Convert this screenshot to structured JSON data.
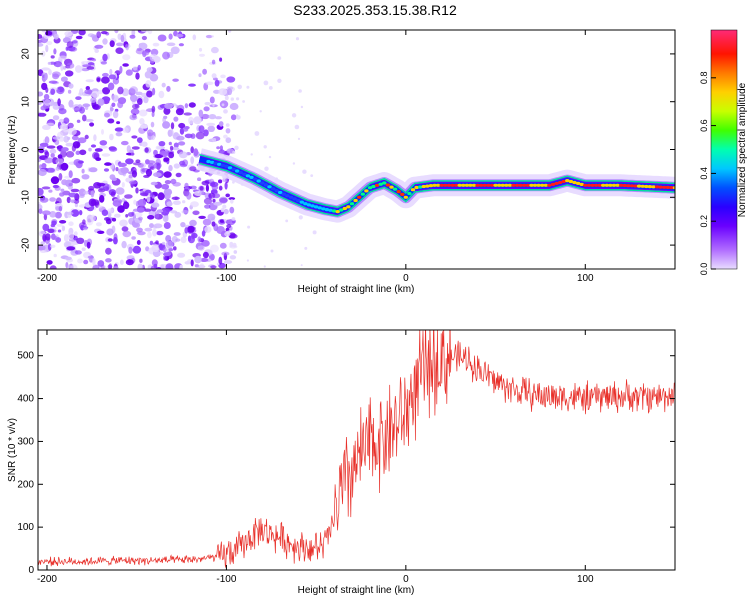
{
  "figure": {
    "title": "S233.2025.353.15.38.R12"
  },
  "chart_data": [
    {
      "type": "heatmap",
      "name": "spectrogram",
      "title": "S233.2025.353.15.38.R12",
      "xlabel": "Height of straight line (km)",
      "ylabel": "Frequency (Hz)",
      "xlim": [
        -205,
        150
      ],
      "ylim": [
        -25,
        25
      ],
      "xticks": [
        -200,
        -100,
        0,
        100
      ],
      "yticks": [
        -20,
        -10,
        0,
        10,
        20
      ],
      "xtick_labels": [
        "-200",
        "-100",
        "0",
        "100"
      ],
      "ytick_labels": [
        "-20",
        "-10",
        "0",
        "10",
        "20"
      ],
      "colorbar": {
        "label": "Normalized spectral amplitude",
        "range": [
          0,
          1
        ],
        "ticks": [
          0,
          0.2,
          0.4,
          0.6,
          0.8
        ],
        "tick_labels": [
          "0.0",
          "0.2",
          "0.4",
          "0.6",
          "0.8"
        ],
        "colors": [
          "#d9c6ff",
          "#6a00ff",
          "#0000ff",
          "#00c8ff",
          "#00ff80",
          "#c8ff00",
          "#ffc800",
          "#ff0000",
          "#ff3c8c"
        ]
      },
      "ridge": {
        "x": [
          -115,
          -100,
          -85,
          -70,
          -55,
          -45,
          -38,
          -32,
          -20,
          -12,
          -5,
          0,
          5,
          15,
          30,
          60,
          80,
          90,
          100,
          120,
          150
        ],
        "y": [
          -2,
          -3.5,
          -6,
          -9,
          -11.5,
          -12.5,
          -13,
          -12,
          -8,
          -7,
          -8.5,
          -10,
          -8,
          -7.5,
          -7.5,
          -7.5,
          -7.5,
          -6.5,
          -7.5,
          -7.5,
          -8
        ]
      }
    },
    {
      "type": "line",
      "name": "snr",
      "xlabel": "Height of straight line (km)",
      "ylabel": "SNR (10 * v/v)",
      "xlim": [
        -205,
        150
      ],
      "ylim": [
        0,
        560
      ],
      "xticks": [
        -200,
        -100,
        0,
        100
      ],
      "yticks": [
        0,
        100,
        200,
        300,
        400,
        500
      ],
      "xtick_labels": [
        "-200",
        "-100",
        "0",
        "100"
      ],
      "ytick_labels": [
        "0",
        "100",
        "200",
        "300",
        "400",
        "500"
      ],
      "color": "#e8302a",
      "series": [
        {
          "name": "SNR",
          "x": [
            -205,
            -180,
            -160,
            -140,
            -120,
            -105,
            -95,
            -88,
            -82,
            -76,
            -70,
            -64,
            -58,
            -52,
            -46,
            -42,
            -38,
            -34,
            -30,
            -26,
            -22,
            -18,
            -14,
            -10,
            -6,
            -2,
            2,
            6,
            10,
            14,
            18,
            22,
            26,
            30,
            35,
            40,
            45,
            50,
            55,
            60,
            70,
            80,
            90,
            100,
            110,
            120,
            130,
            140,
            150
          ],
          "y": [
            20,
            20,
            22,
            22,
            24,
            30,
            45,
            70,
            95,
            85,
            75,
            60,
            55,
            50,
            55,
            90,
            150,
            200,
            230,
            260,
            280,
            300,
            310,
            320,
            340,
            350,
            390,
            430,
            460,
            480,
            490,
            495,
            500,
            495,
            490,
            470,
            455,
            440,
            430,
            420,
            410,
            405,
            405,
            400,
            405,
            405,
            405,
            405,
            410
          ]
        }
      ]
    }
  ]
}
